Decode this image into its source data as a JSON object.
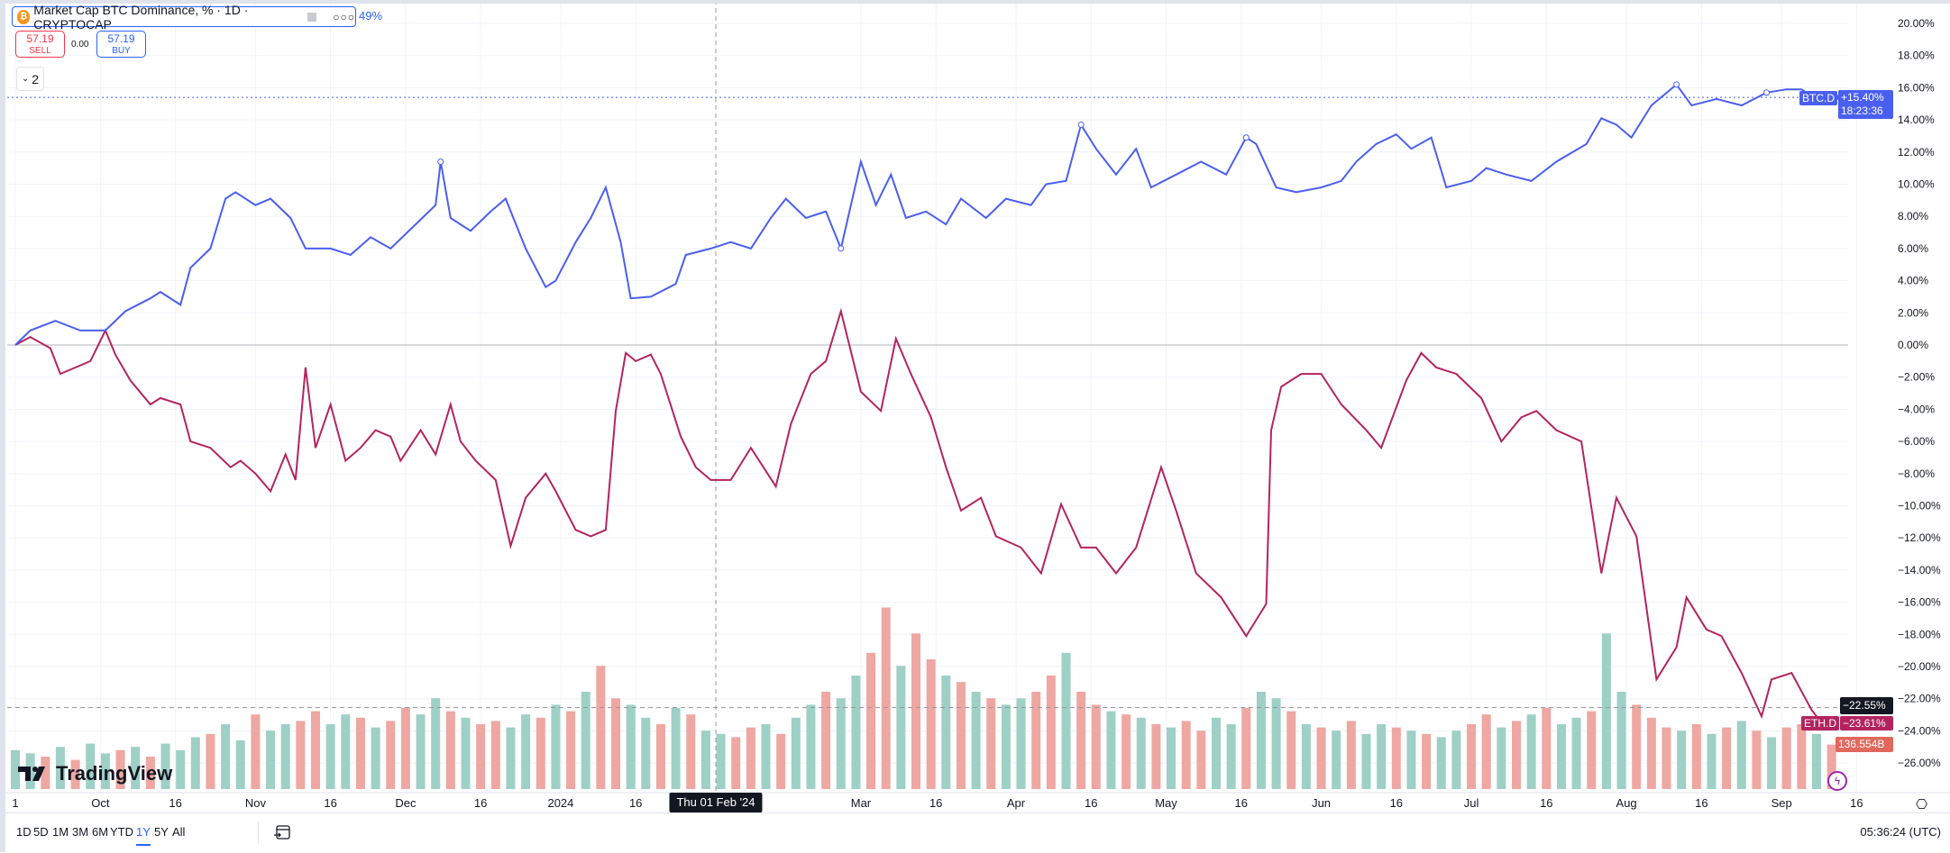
{
  "legend": {
    "title": "Market Cap BTC Dominance, % · 1D · CRYPTOCAP",
    "change_pct": "49%",
    "sell_price": "57.19",
    "sell_label": "SELL",
    "spread": "0.00",
    "buy_price": "57.19",
    "buy_label": "BUY",
    "collapsed_count": "2"
  },
  "tags": {
    "btc_symbol": "BTC.D",
    "btc_value": "+15.40%",
    "btc_countdown": "18:23:36",
    "crosshair_value": "−22.55%",
    "eth_symbol": "ETH.D",
    "eth_value": "−23.61%",
    "volume_value": "136.554B"
  },
  "crosshair_date": "Thu 01 Feb '24",
  "logo": "TradingView",
  "toolbar": {
    "ranges": [
      "1D",
      "5D",
      "1M",
      "3M",
      "6M",
      "YTD",
      "1Y",
      "5Y",
      "All"
    ],
    "active_range": "1Y",
    "clock": "05:36:24 (UTC)"
  },
  "colors": {
    "btc": "#4a5ff0",
    "eth": "#b3245f",
    "vol_up": "#9ed0c6",
    "vol_down": "#eea7a2",
    "accent": "#2962ff"
  },
  "chart_data": {
    "type": "line",
    "title": "Market Cap BTC Dominance, % · 1D · CRYPTOCAP",
    "x_unit": "days since 2023-09-14",
    "ylabel": "% change",
    "ylim": [
      -26,
      20
    ],
    "yticks": [
      "20.00%",
      "18.00%",
      "16.00%",
      "14.00%",
      "12.00%",
      "10.00%",
      "8.00%",
      "6.00%",
      "4.00%",
      "2.00%",
      "0.00%",
      "−2.00%",
      "−4.00%",
      "−6.00%",
      "−8.00%",
      "−10.00%",
      "−12.00%",
      "−14.00%",
      "−16.00%",
      "−18.00%",
      "−20.00%",
      "−22.00%",
      "−24.00%",
      "−26.00%"
    ],
    "xticks": [
      {
        "label": "1",
        "day": 0
      },
      {
        "label": "Oct",
        "day": 17
      },
      {
        "label": "16",
        "day": 32
      },
      {
        "label": "Nov",
        "day": 48
      },
      {
        "label": "16",
        "day": 63
      },
      {
        "label": "Dec",
        "day": 78
      },
      {
        "label": "16",
        "day": 93
      },
      {
        "label": "2024",
        "day": 109
      },
      {
        "label": "16",
        "day": 124
      },
      {
        "label": "Mar",
        "day": 169
      },
      {
        "label": "16",
        "day": 184
      },
      {
        "label": "Apr",
        "day": 200
      },
      {
        "label": "16",
        "day": 215
      },
      {
        "label": "May",
        "day": 230
      },
      {
        "label": "16",
        "day": 245
      },
      {
        "label": "Jun",
        "day": 261
      },
      {
        "label": "16",
        "day": 276
      },
      {
        "label": "Jul",
        "day": 291
      },
      {
        "label": "16",
        "day": 306
      },
      {
        "label": "Aug",
        "day": 322
      },
      {
        "label": "16",
        "day": 337
      },
      {
        "label": "Sep",
        "day": 353
      },
      {
        "label": "16",
        "day": 368
      }
    ],
    "crosshair": {
      "day": 140,
      "value": -22.55
    },
    "series": [
      {
        "name": "BTC.D",
        "last": 15.4,
        "points": [
          [
            0,
            0
          ],
          [
            3,
            0.9
          ],
          [
            8,
            1.5
          ],
          [
            13,
            0.9
          ],
          [
            18,
            0.9
          ],
          [
            22,
            2.1
          ],
          [
            27,
            2.9
          ],
          [
            29,
            3.3
          ],
          [
            33,
            2.5
          ],
          [
            35,
            4.8
          ],
          [
            39,
            6.0
          ],
          [
            42,
            9.1
          ],
          [
            44,
            9.5
          ],
          [
            48,
            8.7
          ],
          [
            51,
            9.1
          ],
          [
            55,
            7.9
          ],
          [
            58,
            6.0
          ],
          [
            63,
            6.0
          ],
          [
            67,
            5.6
          ],
          [
            71,
            6.7
          ],
          [
            75,
            6.0
          ],
          [
            80,
            7.5
          ],
          [
            84,
            8.7
          ],
          [
            85,
            11.4
          ],
          [
            87,
            7.9
          ],
          [
            91,
            7.1
          ],
          [
            95,
            8.3
          ],
          [
            98,
            9.1
          ],
          [
            102,
            6.0
          ],
          [
            106,
            3.6
          ],
          [
            108,
            4.0
          ],
          [
            112,
            6.4
          ],
          [
            115,
            7.9
          ],
          [
            118,
            9.8
          ],
          [
            121,
            6.4
          ],
          [
            123,
            2.9
          ],
          [
            127,
            3.0
          ],
          [
            132,
            3.8
          ],
          [
            134,
            5.6
          ],
          [
            139,
            6.0
          ],
          [
            143,
            6.4
          ],
          [
            147,
            6.0
          ],
          [
            151,
            7.9
          ],
          [
            154,
            9.1
          ],
          [
            158,
            7.9
          ],
          [
            162,
            8.3
          ],
          [
            165,
            6.0
          ],
          [
            169,
            11.4
          ],
          [
            172,
            8.7
          ],
          [
            175,
            10.6
          ],
          [
            178,
            7.9
          ],
          [
            182,
            8.3
          ],
          [
            186,
            7.5
          ],
          [
            189,
            9.1
          ],
          [
            194,
            7.9
          ],
          [
            198,
            9.1
          ],
          [
            203,
            8.7
          ],
          [
            206,
            10.0
          ],
          [
            210,
            10.2
          ],
          [
            213,
            13.7
          ],
          [
            216,
            12.2
          ],
          [
            220,
            10.6
          ],
          [
            224,
            12.2
          ],
          [
            227,
            9.8
          ],
          [
            232,
            10.6
          ],
          [
            237,
            11.4
          ],
          [
            242,
            10.6
          ],
          [
            246,
            12.9
          ],
          [
            248,
            12.5
          ],
          [
            252,
            9.8
          ],
          [
            256,
            9.5
          ],
          [
            261,
            9.8
          ],
          [
            265,
            10.2
          ],
          [
            268,
            11.4
          ],
          [
            272,
            12.5
          ],
          [
            276,
            13.1
          ],
          [
            279,
            12.2
          ],
          [
            283,
            12.9
          ],
          [
            286,
            9.8
          ],
          [
            291,
            10.2
          ],
          [
            294,
            11.0
          ],
          [
            298,
            10.6
          ],
          [
            303,
            10.2
          ],
          [
            308,
            11.4
          ],
          [
            314,
            12.5
          ],
          [
            317,
            14.1
          ],
          [
            320,
            13.7
          ],
          [
            323,
            12.9
          ],
          [
            327,
            14.9
          ],
          [
            332,
            16.2
          ],
          [
            335,
            14.9
          ],
          [
            340,
            15.3
          ],
          [
            345,
            14.9
          ],
          [
            350,
            15.7
          ],
          [
            354,
            15.9
          ],
          [
            357,
            15.9
          ],
          [
            360,
            15.3
          ],
          [
            364,
            15.4
          ]
        ]
      },
      {
        "name": "ETH.D",
        "last": -23.61,
        "points": [
          [
            0,
            0
          ],
          [
            3,
            0.5
          ],
          [
            7,
            -0.2
          ],
          [
            9,
            -1.8
          ],
          [
            12,
            -1.4
          ],
          [
            15,
            -1.0
          ],
          [
            18,
            0.9
          ],
          [
            20,
            -0.6
          ],
          [
            23,
            -2.2
          ],
          [
            27,
            -3.7
          ],
          [
            29,
            -3.3
          ],
          [
            33,
            -3.7
          ],
          [
            35,
            -6.0
          ],
          [
            39,
            -6.4
          ],
          [
            43,
            -7.6
          ],
          [
            45,
            -7.2
          ],
          [
            48,
            -8.0
          ],
          [
            51,
            -9.1
          ],
          [
            54,
            -6.8
          ],
          [
            56,
            -8.4
          ],
          [
            58,
            -1.4
          ],
          [
            60,
            -6.4
          ],
          [
            63,
            -3.7
          ],
          [
            66,
            -7.2
          ],
          [
            69,
            -6.4
          ],
          [
            72,
            -5.3
          ],
          [
            75,
            -5.7
          ],
          [
            77,
            -7.2
          ],
          [
            81,
            -5.3
          ],
          [
            84,
            -6.8
          ],
          [
            87,
            -3.7
          ],
          [
            89,
            -6.0
          ],
          [
            92,
            -7.2
          ],
          [
            96,
            -8.4
          ],
          [
            99,
            -12.5
          ],
          [
            102,
            -9.5
          ],
          [
            106,
            -8.0
          ],
          [
            108,
            -9.1
          ],
          [
            112,
            -11.5
          ],
          [
            115,
            -11.9
          ],
          [
            118,
            -11.5
          ],
          [
            120,
            -4.1
          ],
          [
            122,
            -0.5
          ],
          [
            124,
            -1.0
          ],
          [
            127,
            -0.6
          ],
          [
            129,
            -1.8
          ],
          [
            133,
            -5.7
          ],
          [
            136,
            -7.6
          ],
          [
            139,
            -8.4
          ],
          [
            143,
            -8.4
          ],
          [
            147,
            -6.4
          ],
          [
            152,
            -8.8
          ],
          [
            155,
            -4.9
          ],
          [
            159,
            -1.8
          ],
          [
            162,
            -1.0
          ],
          [
            165,
            2.1
          ],
          [
            169,
            -2.9
          ],
          [
            173,
            -4.1
          ],
          [
            176,
            0.4
          ],
          [
            179,
            -1.8
          ],
          [
            183,
            -4.5
          ],
          [
            186,
            -7.6
          ],
          [
            189,
            -10.3
          ],
          [
            193,
            -9.5
          ],
          [
            196,
            -11.9
          ],
          [
            201,
            -12.6
          ],
          [
            205,
            -14.2
          ],
          [
            209,
            -9.9
          ],
          [
            213,
            -12.6
          ],
          [
            216,
            -12.6
          ],
          [
            220,
            -14.2
          ],
          [
            224,
            -12.6
          ],
          [
            229,
            -7.6
          ],
          [
            232,
            -10.3
          ],
          [
            236,
            -14.2
          ],
          [
            241,
            -15.7
          ],
          [
            246,
            -18.1
          ],
          [
            250,
            -16.1
          ],
          [
            251,
            -5.3
          ],
          [
            253,
            -2.6
          ],
          [
            257,
            -1.8
          ],
          [
            261,
            -1.8
          ],
          [
            265,
            -3.7
          ],
          [
            270,
            -5.3
          ],
          [
            273,
            -6.4
          ],
          [
            278,
            -2.2
          ],
          [
            281,
            -0.5
          ],
          [
            284,
            -1.4
          ],
          [
            288,
            -1.8
          ],
          [
            293,
            -3.3
          ],
          [
            297,
            -6.0
          ],
          [
            301,
            -4.5
          ],
          [
            304,
            -4.1
          ],
          [
            308,
            -5.3
          ],
          [
            313,
            -6.0
          ],
          [
            317,
            -14.2
          ],
          [
            320,
            -9.5
          ],
          [
            324,
            -11.9
          ],
          [
            328,
            -20.8
          ],
          [
            332,
            -18.8
          ],
          [
            334,
            -15.7
          ],
          [
            338,
            -17.7
          ],
          [
            341,
            -18.1
          ],
          [
            345,
            -20.4
          ],
          [
            349,
            -23.1
          ],
          [
            351,
            -20.8
          ],
          [
            355,
            -20.4
          ],
          [
            359,
            -22.7
          ],
          [
            361,
            -23.5
          ],
          [
            364,
            -23.6
          ]
        ]
      }
    ],
    "volume": {
      "unit": "B",
      "step_days": 3,
      "last": 136.554,
      "values": [
        120,
        110,
        100,
        130,
        90,
        140,
        110,
        120,
        130,
        100,
        140,
        120,
        160,
        170,
        200,
        150,
        230,
        180,
        200,
        210,
        240,
        200,
        230,
        220,
        190,
        210,
        250,
        230,
        280,
        240,
        220,
        200,
        210,
        190,
        230,
        220,
        260,
        240,
        300,
        380,
        280,
        260,
        220,
        200,
        250,
        230,
        180,
        170,
        160,
        190,
        200,
        170,
        220,
        260,
        300,
        280,
        350,
        420,
        560,
        380,
        480,
        400,
        350,
        330,
        300,
        280,
        260,
        280,
        300,
        350,
        420,
        300,
        260,
        240,
        230,
        220,
        200,
        190,
        210,
        180,
        220,
        200,
        250,
        300,
        280,
        240,
        200,
        190,
        180,
        210,
        170,
        200,
        190,
        180,
        170,
        160,
        180,
        200,
        230,
        190,
        210,
        230,
        250,
        200,
        220,
        240,
        480,
        300,
        260,
        220,
        190,
        180,
        200,
        170,
        190,
        210,
        180,
        160,
        190,
        200,
        170,
        137
      ],
      "up": [
        1,
        1,
        0,
        1,
        0,
        1,
        1,
        0,
        1,
        0,
        1,
        1,
        1,
        0,
        1,
        1,
        0,
        1,
        1,
        0,
        0,
        1,
        1,
        0,
        1,
        0,
        0,
        1,
        1,
        0,
        1,
        0,
        0,
        1,
        1,
        0,
        1,
        0,
        1,
        0,
        0,
        1,
        1,
        0,
        1,
        0,
        1,
        1,
        0,
        0,
        1,
        0,
        1,
        1,
        0,
        1,
        1,
        0,
        0,
        1,
        0,
        0,
        1,
        0,
        1,
        0,
        1,
        1,
        0,
        0,
        1,
        0,
        0,
        1,
        0,
        1,
        0,
        1,
        0,
        0,
        1,
        1,
        0,
        1,
        1,
        0,
        1,
        0,
        1,
        0,
        1,
        1,
        0,
        1,
        0,
        1,
        1,
        0,
        0,
        1,
        0,
        1,
        0,
        1,
        1,
        0,
        1,
        1,
        0,
        0,
        0,
        1,
        0,
        1,
        0,
        1,
        0,
        1,
        0,
        0,
        1,
        0
      ]
    }
  }
}
